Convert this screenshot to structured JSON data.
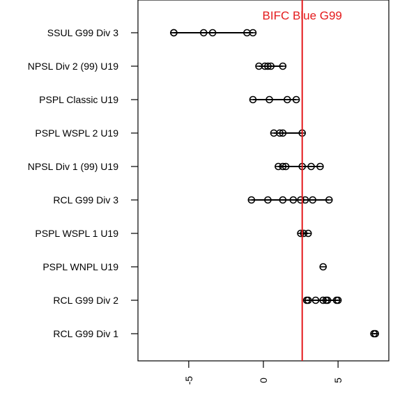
{
  "chart_data": {
    "type": "scatter",
    "title": "",
    "xlabel": "",
    "ylabel": "",
    "xlim": [
      -8.4,
      8.4
    ],
    "x_ticks": [
      -5,
      0,
      5
    ],
    "x_tick_labels": [
      "-5",
      "0",
      "5"
    ],
    "grid": false,
    "legend": "none",
    "categories": [
      "SSUL G99 Div 3",
      "NPSL Div 2 (99) U19",
      "PSPL Classic U19",
      "PSPL WSPL 2 U19",
      "NPSL Div 1 (99) U19",
      "RCL G99 Div 3",
      "PSPL WSPL 1 U19",
      "PSPL WNPL U19",
      "RCL G99 Div 2",
      "RCL G99 Div 1"
    ],
    "series": [
      {
        "values": [
          -6.0,
          -6.0,
          -4.0,
          -3.4,
          -1.1,
          -0.7
        ]
      },
      {
        "values": [
          -0.3,
          0.1,
          0.3,
          0.5,
          1.3
        ]
      },
      {
        "values": [
          -0.7,
          0.4,
          1.6,
          2.2
        ]
      },
      {
        "values": [
          0.7,
          1.1,
          1.3,
          2.6
        ]
      },
      {
        "values": [
          1.0,
          1.3,
          1.5,
          2.6,
          3.2,
          3.8
        ]
      },
      {
        "values": [
          -0.8,
          0.3,
          1.3,
          2.0,
          2.5,
          2.8,
          3.3,
          4.4
        ]
      },
      {
        "values": [
          2.5,
          2.7,
          3.0
        ]
      },
      {
        "values": [
          4.0
        ]
      },
      {
        "values": [
          2.9,
          3.0,
          3.5,
          4.0,
          4.2,
          4.3,
          4.9,
          5.0
        ]
      },
      {
        "values": [
          7.4,
          7.5
        ]
      }
    ],
    "reference_line": {
      "x": 2.6,
      "label": "BIFC Blue G99",
      "color": "#e41a1c"
    },
    "colors": {
      "points": "#000000",
      "axis": "#000000",
      "reference": "#e41a1c"
    }
  }
}
